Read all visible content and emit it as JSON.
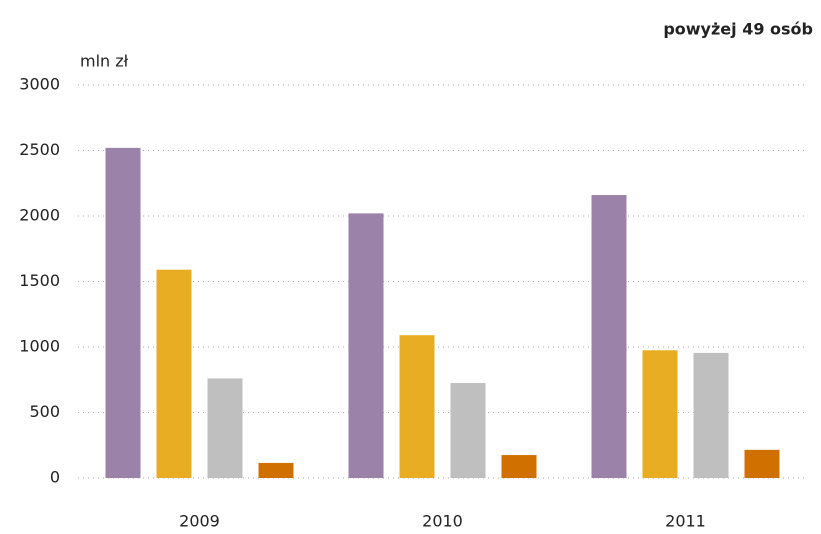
{
  "chart_data": {
    "type": "bar",
    "title": "powyżej 49 osób",
    "y_label": "mln zł",
    "categories": [
      "2009",
      "2010",
      "2011"
    ],
    "series": [
      {
        "color": "#9b82a8",
        "values": [
          2520,
          2020,
          2160
        ]
      },
      {
        "color": "#e8ad22",
        "values": [
          1590,
          1090,
          975
        ]
      },
      {
        "color": "#bfbfbf",
        "values": [
          760,
          725,
          955
        ]
      },
      {
        "color": "#d07000",
        "values": [
          115,
          175,
          215
        ]
      }
    ],
    "ylim": [
      0,
      3000
    ],
    "yticks": [
      0,
      500,
      1000,
      1500,
      2000,
      2500,
      3000
    ],
    "grid": true
  }
}
